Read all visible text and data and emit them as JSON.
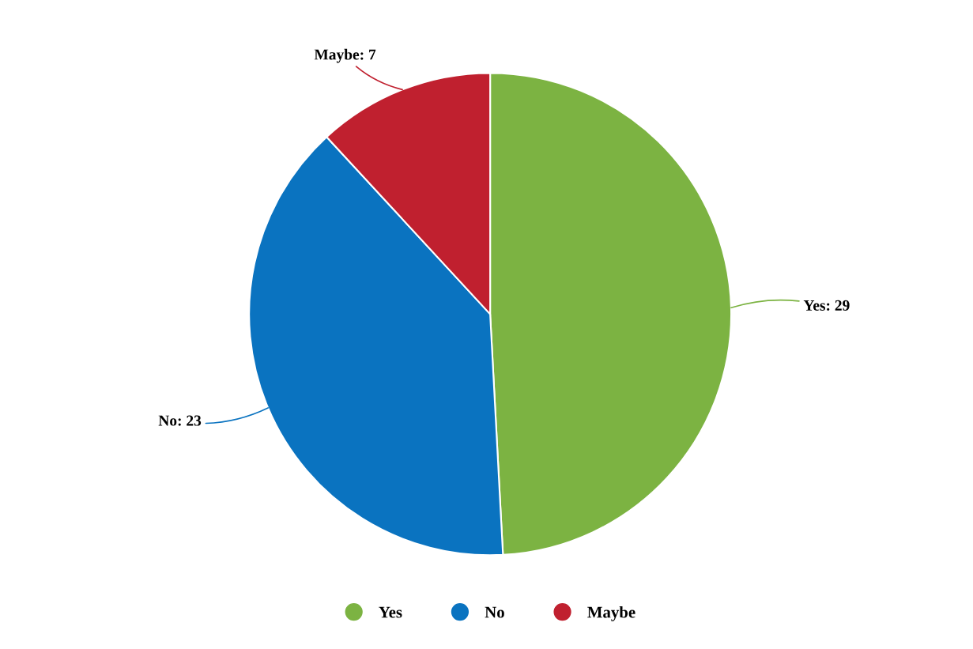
{
  "chart_data": {
    "type": "pie",
    "categories": [
      "Yes",
      "No",
      "Maybe"
    ],
    "values": [
      29,
      23,
      7
    ],
    "colors": [
      "#7cb342",
      "#0a73c0",
      "#c0202f"
    ],
    "value_labels": [
      "Yes: 29",
      "No: 23",
      "Maybe: 7"
    ],
    "legend": "bottom"
  }
}
